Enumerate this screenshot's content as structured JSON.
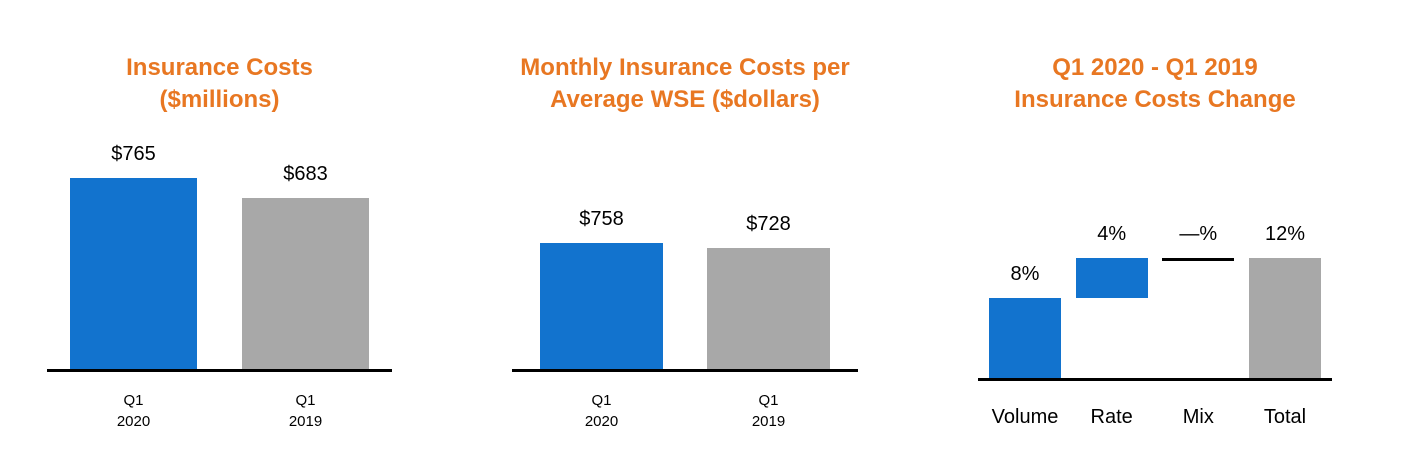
{
  "colors": {
    "title_orange": "#E87722",
    "bar_blue": "#1273CE",
    "bar_gray": "#A8A8A8",
    "axis_black": "#000000"
  },
  "chart_data": [
    {
      "type": "bar",
      "title": "Insurance Costs\n($millions)",
      "categories": [
        "Q1\n2020",
        "Q1\n2019"
      ],
      "values": [
        765,
        683
      ],
      "data_labels": [
        "$765",
        "$683"
      ],
      "bar_kinds": [
        "blue",
        "gray"
      ],
      "xlabel": "",
      "ylabel": "",
      "ylim": [
        0,
        800
      ],
      "grid": false,
      "legend": "none"
    },
    {
      "type": "bar",
      "title": "Monthly Insurance Costs per\nAverage WSE ($dollars)",
      "categories": [
        "Q1\n2020",
        "Q1\n2019"
      ],
      "values": [
        758,
        728
      ],
      "data_labels": [
        "$758",
        "$728"
      ],
      "bar_kinds": [
        "blue",
        "gray"
      ],
      "xlabel": "",
      "ylabel": "",
      "ylim": [
        0,
        1200
      ],
      "grid": false,
      "legend": "none"
    },
    {
      "type": "bar",
      "variant": "waterfall",
      "title": "Q1 2020 - Q1 2019\nInsurance Costs Change",
      "categories": [
        "Volume",
        "Rate",
        "Mix",
        "Total"
      ],
      "values": [
        8,
        4,
        0,
        12
      ],
      "data_labels": [
        "8%",
        "4%",
        "—%",
        "12%"
      ],
      "bar_kinds": [
        "blue",
        "blue",
        "zero",
        "total"
      ],
      "xlabel": "",
      "ylabel": "",
      "ylim": [
        0,
        20
      ],
      "grid": false,
      "legend": "none"
    }
  ]
}
